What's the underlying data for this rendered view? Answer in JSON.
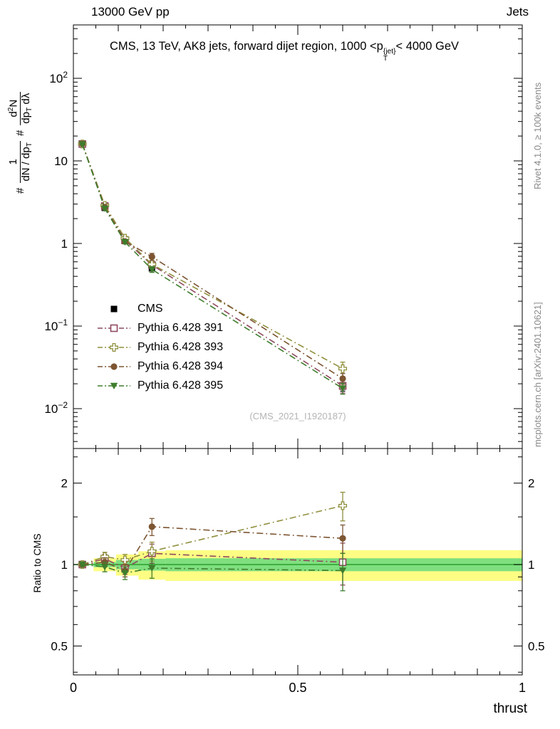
{
  "header": {
    "beam": "13000 GeV pp",
    "analysis": "Jets"
  },
  "title_segments": [
    {
      "t": "CMS, 13 TeV, AK8 jets, forward dijet region, 1000 <"
    },
    {
      "t": "p"
    },
    {
      "t": "{jet}",
      "s": "sup"
    },
    {
      "t": "T",
      "s": "sub"
    },
    {
      "t": "< 4000 GeV"
    }
  ],
  "ylabel": {
    "pre1": "#",
    "frac1": {
      "num": [
        {
          "t": "1"
        }
      ],
      "den": [
        {
          "t": "dN / dp"
        },
        {
          "t": "T",
          "s": "sub"
        }
      ]
    },
    "pre2": "#",
    "frac2": {
      "num": [
        {
          "t": "d"
        },
        {
          "t": "2",
          "s": "sup"
        },
        {
          "t": "N"
        }
      ],
      "den": [
        {
          "t": "dp"
        },
        {
          "t": "T",
          "s": "sub"
        },
        {
          "t": " dλ"
        }
      ]
    }
  },
  "ratio_ylabel": "Ratio to CMS",
  "xlabel": "thrust",
  "watermark": "(CMS_2021_I1920187)",
  "side_notes": {
    "top": "Rivet 4.1.0, ≥ 100k events",
    "bottom": "mcplots.cern.ch [arXiv:2401.10621]"
  },
  "chart_data": {
    "type": "line",
    "title": "CMS, 13 TeV, AK8 jets, forward dijet region, 1000 < pT{jet} < 4000 GeV",
    "xlabel": "thrust",
    "ylabel": "# 1/(dN/dpT) d2N/(dpT dλ)",
    "ratio_label": "Ratio to CMS",
    "xlim": [
      0,
      1
    ],
    "ylog_lim": [
      -2.48,
      2.65
    ],
    "ratio_lim": [
      0.39,
      2.68
    ],
    "x_major_ticks": [
      0,
      0.5,
      1
    ],
    "x_tick_labels": [
      "0",
      "0.5",
      "1"
    ],
    "x_minor_step": 0.05,
    "y_decades": [
      -2,
      -1,
      0,
      1,
      2
    ],
    "ratio_major_ticks": [
      0.5,
      1,
      2
    ],
    "ratio_tick_labels": [
      "0.5",
      "1",
      "2"
    ],
    "ratio_minor_ticks": [
      0.4,
      0.6,
      0.7,
      0.8,
      0.9,
      1.5,
      2.5
    ],
    "x": [
      0.02,
      0.07,
      0.115,
      0.175,
      0.6
    ],
    "series": [
      {
        "name": "CMS",
        "color": "#000000",
        "marker": "square-filled",
        "line": "none",
        "in_ratio": false,
        "values": [
          16,
          2.7,
          1.12,
          0.5,
          0.0185
        ],
        "err_rel": [
          0.03,
          0.03,
          0.04,
          0.06,
          0.12
        ]
      },
      {
        "name": "Pythia 6.428 391",
        "color": "#8e4a5e",
        "marker": "square-open",
        "line": "dashdot",
        "values": [
          16.0,
          2.84,
          1.09,
          0.55,
          0.0189
        ],
        "ratio": [
          1.0,
          1.05,
          0.97,
          1.1,
          1.02
        ],
        "ratio_err": [
          0.015,
          0.04,
          0.05,
          0.09,
          0.18
        ]
      },
      {
        "name": "Pythia 6.428 393",
        "color": "#8f8f3d",
        "marker": "cross-open",
        "line": "dashdot",
        "values": [
          16.0,
          2.89,
          1.16,
          0.56,
          0.0305
        ],
        "ratio": [
          1.0,
          1.07,
          1.04,
          1.12,
          1.65
        ],
        "ratio_err": [
          0.015,
          0.04,
          0.05,
          0.09,
          0.2
        ]
      },
      {
        "name": "Pythia 6.428 394",
        "color": "#7d5532",
        "marker": "circle-filled",
        "line": "dashdot",
        "values": [
          16.1,
          2.75,
          1.06,
          0.69,
          0.0231
        ],
        "ratio": [
          1.0,
          1.02,
          0.95,
          1.38,
          1.25
        ],
        "ratio_err": [
          0.015,
          0.04,
          0.05,
          0.1,
          0.15
        ]
      },
      {
        "name": "Pythia 6.428 395",
        "color": "#3e7d2c",
        "marker": "triangle-down-filled",
        "line": "dashdot",
        "values": [
          15.9,
          2.65,
          1.04,
          0.485,
          0.0176
        ],
        "ratio": [
          1.0,
          0.98,
          0.93,
          0.97,
          0.95
        ],
        "ratio_err": [
          0.015,
          0.04,
          0.05,
          0.08,
          0.15
        ]
      }
    ],
    "band_colors": {
      "outer": "#fdfd84",
      "inner": "#7fdf7f",
      "line": "#2ca02c"
    },
    "bands": [
      {
        "x0": 0.045,
        "x1": 0.095,
        "outer": 0.055,
        "inner": 0.022
      },
      {
        "x0": 0.095,
        "x1": 0.145,
        "outer": 0.09,
        "inner": 0.04
      },
      {
        "x0": 0.145,
        "x1": 0.205,
        "outer": 0.12,
        "inner": 0.05
      },
      {
        "x0": 0.205,
        "x1": 1.0,
        "outer": 0.13,
        "inner": 0.055
      }
    ],
    "legend_position": "middle-left",
    "grid": false
  }
}
